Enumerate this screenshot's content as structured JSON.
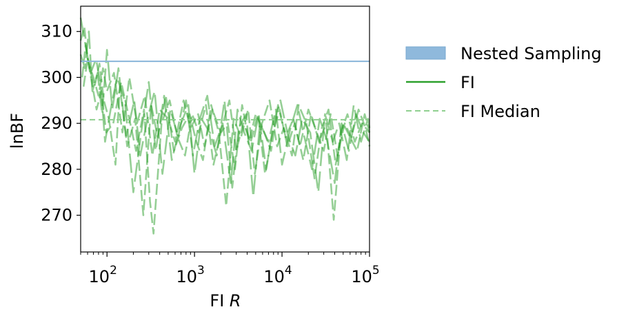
{
  "chart_data": {
    "type": "line",
    "xscale": "log",
    "xlim": [
      50,
      100000
    ],
    "ylim": [
      262,
      315.5
    ],
    "xlabel_prefix": "FI",
    "xlabel_var": "R",
    "ylabel": "lnBF",
    "grid": false,
    "legend_placement": "outside-right",
    "x_ticks": [
      {
        "value": 100,
        "base": "10",
        "exp": "2"
      },
      {
        "value": 1000,
        "base": "10",
        "exp": "3"
      },
      {
        "value": 10000,
        "base": "10",
        "exp": "4"
      },
      {
        "value": 100000,
        "base": "10",
        "exp": "5"
      }
    ],
    "y_ticks": [
      {
        "value": 270,
        "label": "270"
      },
      {
        "value": 280,
        "label": "280"
      },
      {
        "value": 290,
        "label": "290"
      },
      {
        "value": 300,
        "label": "300"
      },
      {
        "value": 310,
        "label": "310"
      }
    ],
    "nested_sampling": {
      "name": "Nested Sampling",
      "value": 303.5,
      "color": "#8fb9dc"
    },
    "fi_median": {
      "name": "FI Median",
      "value": 290.8,
      "color": "#8fcf8f"
    },
    "fi_series_style": {
      "name": "FI",
      "color": "#2ca02c"
    },
    "fi_series": [
      {
        "name": "FI",
        "x": [
          50,
          55,
          60,
          70,
          80,
          90,
          100,
          120,
          150,
          180,
          220,
          270,
          330,
          400,
          500,
          600,
          750,
          900,
          1100,
          1300,
          1600,
          2000,
          2400,
          2900,
          3500,
          4200,
          5000,
          6000,
          7500,
          9000,
          11000,
          13500,
          16000,
          20000,
          25000,
          30000,
          36000,
          43000,
          52000,
          62000,
          75000,
          90000,
          100000
        ],
        "y": [
          308,
          311,
          304,
          300,
          296,
          302,
          297,
          301,
          288,
          300,
          290,
          296,
          283,
          293,
          291,
          286,
          295,
          289,
          292,
          285,
          293,
          288,
          290,
          280,
          294,
          286,
          292,
          289,
          284,
          294,
          287,
          291,
          285,
          293,
          288,
          284,
          292,
          283,
          290,
          287,
          293,
          289,
          285
        ]
      },
      {
        "name": "FI",
        "x": [
          50,
          58,
          65,
          75,
          85,
          95,
          110,
          130,
          160,
          200,
          250,
          300,
          360,
          450,
          550,
          700,
          850,
          1000,
          1200,
          1500,
          1800,
          2200,
          2700,
          3200,
          3900,
          4700,
          5600,
          7000,
          8500,
          10000,
          12500,
          15000,
          18000,
          22000,
          27000,
          33000,
          40000,
          48000,
          58000,
          70000,
          85000,
          100000
        ],
        "y": [
          313,
          306,
          301,
          304,
          298,
          286,
          293,
          300,
          295,
          275,
          289,
          299,
          284,
          296,
          282,
          290,
          294,
          279,
          291,
          288,
          283,
          295,
          276,
          289,
          292,
          274,
          290,
          286,
          293,
          281,
          289,
          294,
          287,
          280,
          291,
          286,
          277,
          290,
          284,
          292,
          288,
          286
        ]
      },
      {
        "name": "FI",
        "x": [
          52,
          57,
          63,
          72,
          82,
          92,
          105,
          125,
          140,
          170,
          210,
          260,
          320,
          380,
          470,
          580,
          720,
          880,
          1050,
          1250,
          1550,
          1900,
          2300,
          2800,
          3400,
          4100,
          4900,
          5900,
          7200,
          8800,
          10500,
          13000,
          15500,
          19000,
          23500,
          28500,
          34000,
          41000,
          50000,
          60000,
          72000,
          88000,
          100000
        ],
        "y": [
          300,
          307,
          302,
          298,
          303,
          295,
          291,
          281,
          298,
          285,
          291,
          270,
          294,
          287,
          296,
          284,
          289,
          292,
          286,
          282,
          294,
          288,
          272,
          291,
          287,
          293,
          279,
          290,
          295,
          285,
          289,
          283,
          294,
          290,
          278,
          289,
          293,
          281,
          290,
          287,
          284,
          292,
          288
        ]
      },
      {
        "name": "FI",
        "x": [
          50,
          56,
          62,
          68,
          78,
          88,
          100,
          115,
          135,
          165,
          205,
          240,
          290,
          350,
          430,
          530,
          650,
          800,
          960,
          1150,
          1400,
          1700,
          2100,
          2600,
          3100,
          3700,
          4500,
          5400,
          6600,
          8000,
          9600,
          11800,
          14200,
          17000,
          21000,
          26000,
          31000,
          38000,
          45000,
          55000,
          66000,
          80000,
          96000,
          100000
        ],
        "y": [
          305,
          302,
          310,
          297,
          301,
          292,
          306,
          293,
          302,
          287,
          295,
          283,
          291,
          297,
          279,
          293,
          287,
          295,
          283,
          291,
          296,
          285,
          290,
          277,
          293,
          288,
          284,
          292,
          280,
          290,
          295,
          287,
          283,
          291,
          288,
          275,
          292,
          286,
          290,
          282,
          294,
          286,
          291,
          289
        ]
      },
      {
        "name": "FI",
        "x": [
          54,
          60,
          67,
          76,
          86,
          98,
          118,
          145,
          175,
          215,
          265,
          310,
          340,
          420,
          520,
          640,
          780,
          940,
          1120,
          1350,
          1650,
          2050,
          2500,
          3000,
          3600,
          4400,
          5300,
          6400,
          7800,
          9400,
          11500,
          14000,
          17500,
          21500,
          26500,
          32000,
          39000,
          47000,
          56000,
          68000,
          82000,
          100000
        ],
        "y": [
          298,
          304,
          299,
          293,
          297,
          288,
          290,
          299,
          292,
          284,
          293,
          273,
          266,
          290,
          295,
          287,
          283,
          292,
          288,
          294,
          281,
          289,
          295,
          284,
          290,
          286,
          292,
          279,
          288,
          293,
          285,
          290,
          282,
          292,
          286,
          290,
          269,
          288,
          292,
          286,
          290,
          288
        ]
      }
    ],
    "legend": [
      {
        "type": "patch",
        "name": "Nested Sampling"
      },
      {
        "type": "solid",
        "name": "FI"
      },
      {
        "type": "dashed",
        "name": "FI Median"
      }
    ]
  }
}
